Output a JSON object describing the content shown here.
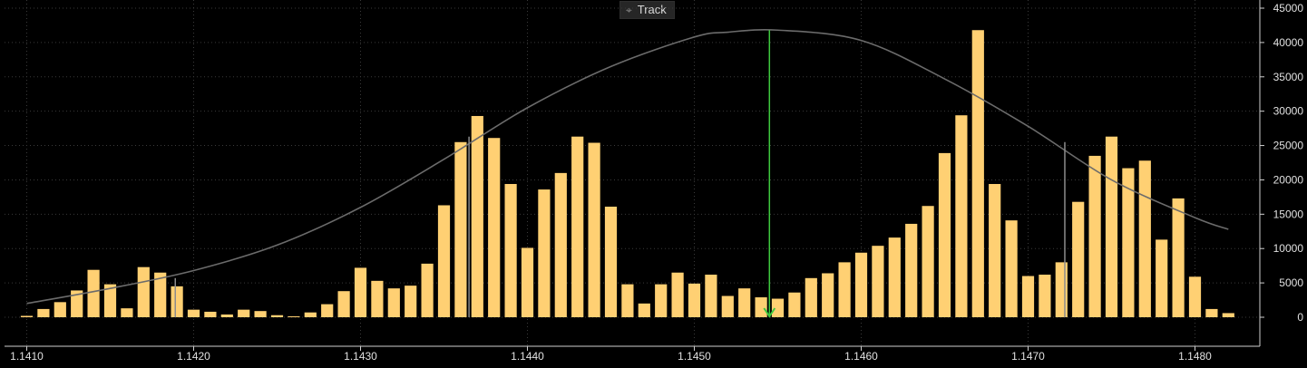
{
  "toolbar": {
    "track_label": "Track",
    "track_icon": "crosshair-icon"
  },
  "colors": {
    "bar": "#FFD073",
    "curve": "#6b6b6b",
    "marker": "#3ec83e",
    "grid": "#3a3a3a",
    "axis": "#cfcfcf",
    "background": "#000000"
  },
  "chart_data": {
    "type": "bar",
    "title": "",
    "xlabel": "",
    "ylabel": "",
    "grid": true,
    "x_range": [
      1.141,
      1.1483
    ],
    "ylim": [
      -5000,
      45000
    ],
    "x_ticks": [
      "1.1410",
      "1.1420",
      "1.1430",
      "1.1440",
      "1.1450",
      "1.1460",
      "1.1470",
      "1.1480"
    ],
    "y_ticks": [
      "45000",
      "40000",
      "35000",
      "30000",
      "25000",
      "20000",
      "15000",
      "10000",
      "5000",
      "0"
    ],
    "bars": {
      "x_start": 1.141,
      "step": 0.0001,
      "values": [
        200,
        1200,
        2200,
        3900,
        6900,
        4800,
        1300,
        7300,
        6500,
        4500,
        1100,
        800,
        400,
        1100,
        900,
        300,
        100,
        700,
        1900,
        3800,
        7200,
        5300,
        4200,
        4600,
        7800,
        16300,
        25500,
        29300,
        26100,
        19400,
        10100,
        18600,
        21000,
        26300,
        25400,
        16100,
        4800,
        2000,
        4800,
        6500,
        4900,
        6200,
        3100,
        4200,
        2900,
        2700,
        3600,
        5700,
        6400,
        8000,
        9400,
        10400,
        11600,
        13600,
        16200,
        23900,
        29400,
        41800,
        19400,
        14100,
        6000,
        6200,
        8000,
        16800,
        23500,
        26300,
        21700,
        22800,
        11300,
        17300,
        5900,
        1200,
        600
      ]
    },
    "curve": {
      "name": "",
      "x": [
        1.141,
        1.1415,
        1.142,
        1.1425,
        1.143,
        1.1435,
        1.144,
        1.1445,
        1.145,
        1.1452,
        1.1455,
        1.146,
        1.1465,
        1.147,
        1.1475,
        1.148,
        1.1482
      ],
      "y": [
        2000,
        4200,
        6800,
        10500,
        16000,
        23000,
        30500,
        36500,
        40800,
        41500,
        41800,
        40300,
        34700,
        27800,
        20000,
        14500,
        12800
      ]
    },
    "markers": [
      {
        "x": 1.14545,
        "y": 41800,
        "color": "green",
        "arrow": true
      },
      {
        "x": 1.14365,
        "y": 26300,
        "color": "gray",
        "arrow": false
      },
      {
        "x": 1.14722,
        "y": 25500,
        "color": "gray",
        "arrow": false
      },
      {
        "x": 1.14189,
        "y": 5700,
        "color": "gray",
        "arrow": false
      }
    ]
  }
}
